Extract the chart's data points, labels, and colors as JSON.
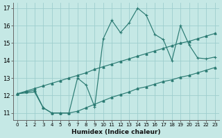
{
  "xlabel": "Humidex (Indice chaleur)",
  "bg_color": "#c5e8e5",
  "grid_color": "#9ecece",
  "line_color": "#2a7a72",
  "xlim": [
    -0.5,
    23.5
  ],
  "ylim": [
    10.6,
    17.3
  ],
  "xtick_vals": [
    0,
    1,
    2,
    3,
    4,
    5,
    6,
    7,
    8,
    9,
    10,
    11,
    12,
    13,
    14,
    15,
    16,
    17,
    18,
    19,
    20,
    21,
    22,
    23
  ],
  "ytick_vals": [
    11,
    12,
    13,
    14,
    15,
    16,
    17
  ],
  "line1_x": [
    0,
    1,
    2,
    3,
    4,
    5,
    6,
    7,
    8,
    9,
    10,
    11,
    12,
    13,
    14,
    15,
    16,
    17,
    18,
    19,
    20,
    21,
    22,
    23
  ],
  "line1_y": [
    12.1,
    12.2,
    12.3,
    11.3,
    11.0,
    11.0,
    11.0,
    11.1,
    11.3,
    11.5,
    11.7,
    11.9,
    12.05,
    12.2,
    12.4,
    12.5,
    12.65,
    12.8,
    12.9,
    13.05,
    13.15,
    13.3,
    13.45,
    13.6
  ],
  "line2_x": [
    0,
    1,
    2,
    3,
    4,
    5,
    6,
    7,
    8,
    9,
    10,
    11,
    12,
    13,
    14,
    15,
    16,
    17,
    18,
    19,
    20,
    21,
    22,
    23
  ],
  "line2_y": [
    12.1,
    12.25,
    12.4,
    12.55,
    12.7,
    12.85,
    13.0,
    13.15,
    13.3,
    13.5,
    13.65,
    13.8,
    13.95,
    14.1,
    14.25,
    14.4,
    14.55,
    14.7,
    14.85,
    15.0,
    15.1,
    15.25,
    15.4,
    15.55
  ],
  "line3_x": [
    0,
    2,
    3,
    4,
    5,
    6,
    7,
    8,
    9,
    10,
    11,
    12,
    13,
    14,
    15,
    16,
    17,
    18,
    19,
    20,
    21,
    22,
    23
  ],
  "line3_y": [
    12.1,
    12.2,
    11.3,
    11.0,
    11.0,
    11.0,
    13.0,
    12.6,
    11.35,
    15.25,
    16.3,
    15.6,
    16.15,
    17.0,
    16.6,
    15.5,
    15.2,
    14.0,
    16.0,
    14.9,
    14.15,
    14.1,
    14.2
  ]
}
